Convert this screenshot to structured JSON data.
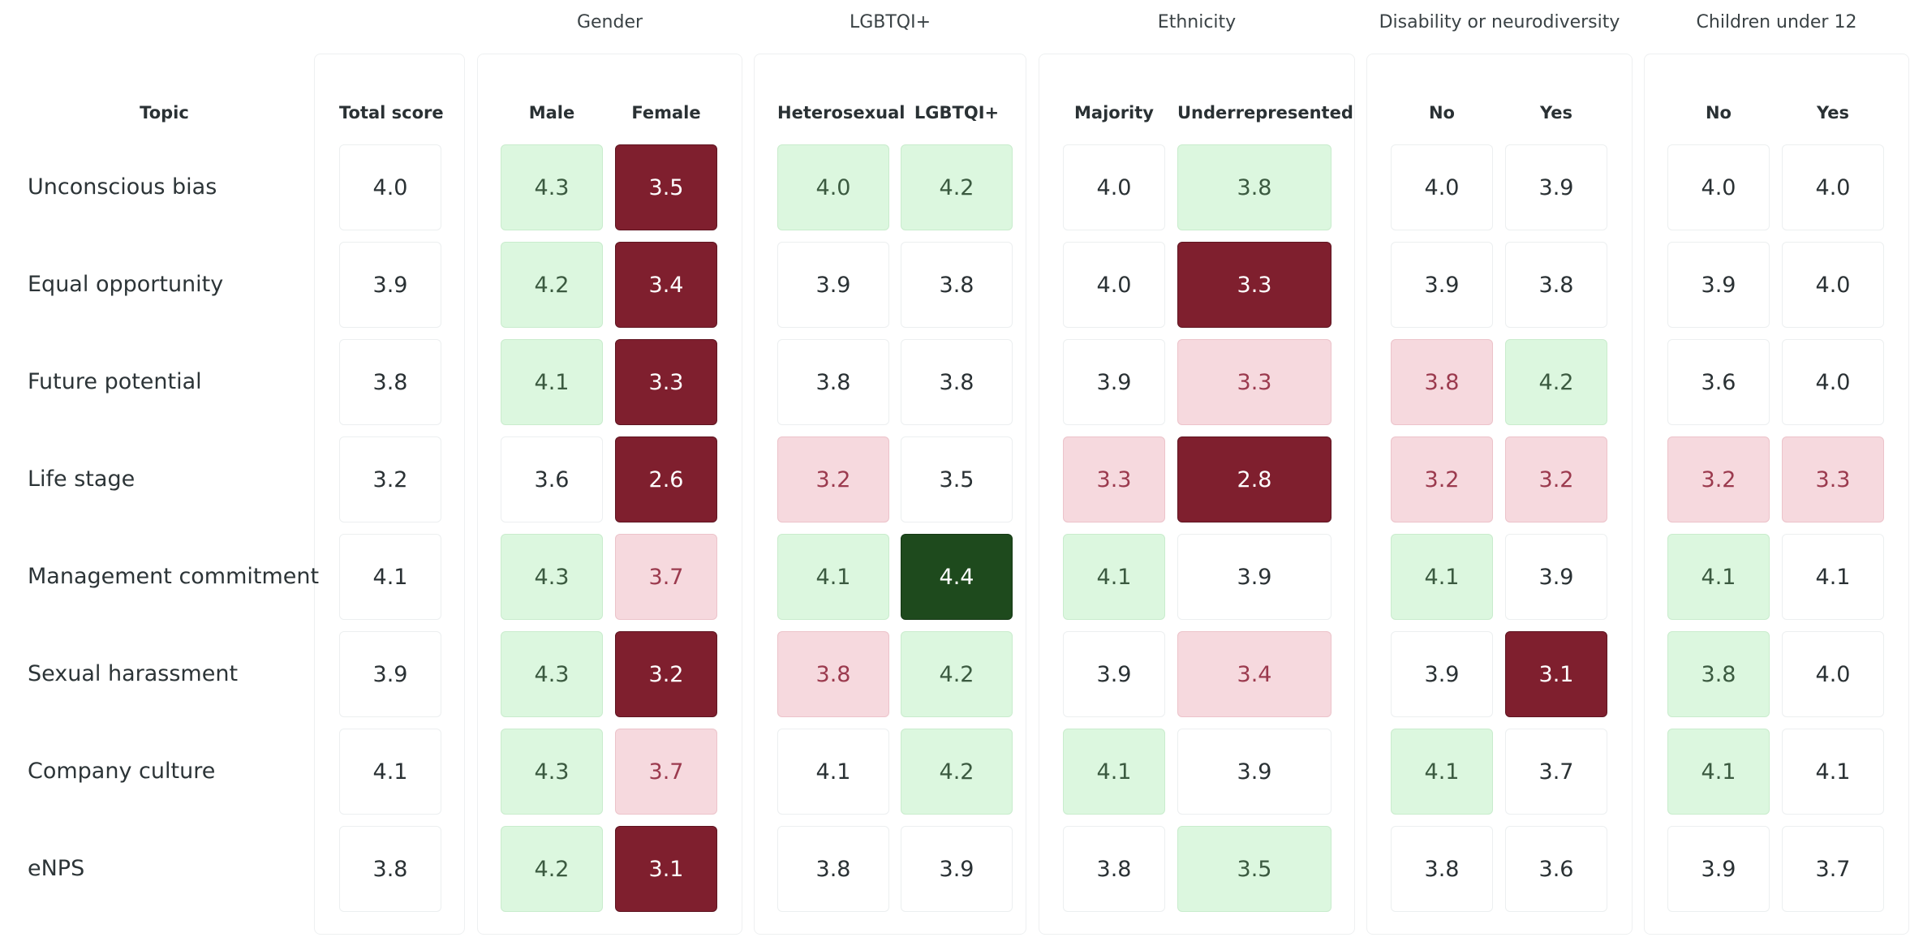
{
  "chart_data": {
    "type": "table",
    "title": "",
    "topic_header": "Topic",
    "groups": [
      {
        "title": "",
        "columns": [
          "Total score"
        ]
      },
      {
        "title": "Gender",
        "columns": [
          "Male",
          "Female"
        ]
      },
      {
        "title": "LGBTQI+",
        "columns": [
          "Heterosexual",
          "LGBTQI+"
        ]
      },
      {
        "title": "Ethnicity",
        "columns": [
          "Majority",
          "Underrepresented"
        ]
      },
      {
        "title": "Disability or neurodiversity",
        "columns": [
          "No",
          "Yes"
        ]
      },
      {
        "title": "Children under 12",
        "columns": [
          "No",
          "Yes"
        ]
      }
    ],
    "rows": [
      {
        "topic": "Unconscious bias",
        "values": [
          "4.0",
          "4.3",
          "3.5",
          "4.0",
          "4.2",
          "4.0",
          "3.8",
          "4.0",
          "3.9",
          "4.0",
          "4.0"
        ],
        "levels": [
          "neutral",
          "good",
          "worst",
          "good",
          "good",
          "neutral",
          "good",
          "neutral",
          "neutral",
          "neutral",
          "neutral"
        ]
      },
      {
        "topic": "Equal opportunity",
        "values": [
          "3.9",
          "4.2",
          "3.4",
          "3.9",
          "3.8",
          "4.0",
          "3.3",
          "3.9",
          "3.8",
          "3.9",
          "4.0"
        ],
        "levels": [
          "neutral",
          "good",
          "worst",
          "neutral",
          "neutral",
          "neutral",
          "worst",
          "neutral",
          "neutral",
          "neutral",
          "neutral"
        ]
      },
      {
        "topic": "Future potential",
        "values": [
          "3.8",
          "4.1",
          "3.3",
          "3.8",
          "3.8",
          "3.9",
          "3.3",
          "3.8",
          "4.2",
          "3.6",
          "4.0"
        ],
        "levels": [
          "neutral",
          "good",
          "worst",
          "neutral",
          "neutral",
          "neutral",
          "bad",
          "bad",
          "good",
          "neutral",
          "neutral"
        ]
      },
      {
        "topic": "Life stage",
        "values": [
          "3.2",
          "3.6",
          "2.6",
          "3.2",
          "3.5",
          "3.3",
          "2.8",
          "3.2",
          "3.2",
          "3.2",
          "3.3"
        ],
        "levels": [
          "neutral",
          "neutral",
          "worst",
          "bad",
          "neutral",
          "bad",
          "worst",
          "bad",
          "bad",
          "bad",
          "bad"
        ]
      },
      {
        "topic": "Management commitment",
        "values": [
          "4.1",
          "4.3",
          "3.7",
          "4.1",
          "4.4",
          "4.1",
          "3.9",
          "4.1",
          "3.9",
          "4.1",
          "4.1"
        ],
        "levels": [
          "neutral",
          "good",
          "bad",
          "good",
          "great",
          "good",
          "neutral",
          "good",
          "neutral",
          "good",
          "neutral"
        ]
      },
      {
        "topic": "Sexual harassment",
        "values": [
          "3.9",
          "4.3",
          "3.2",
          "3.8",
          "4.2",
          "3.9",
          "3.4",
          "3.9",
          "3.1",
          "3.8",
          "4.0"
        ],
        "levels": [
          "neutral",
          "good",
          "worst",
          "bad",
          "good",
          "neutral",
          "bad",
          "neutral",
          "worst",
          "good",
          "neutral"
        ]
      },
      {
        "topic": "Company culture",
        "values": [
          "4.1",
          "4.3",
          "3.7",
          "4.1",
          "4.2",
          "4.1",
          "3.9",
          "4.1",
          "3.7",
          "4.1",
          "4.1"
        ],
        "levels": [
          "neutral",
          "good",
          "bad",
          "neutral",
          "good",
          "good",
          "neutral",
          "good",
          "neutral",
          "good",
          "neutral"
        ]
      },
      {
        "topic": "eNPS",
        "values": [
          "3.8",
          "4.2",
          "3.1",
          "3.8",
          "3.9",
          "3.8",
          "3.5",
          "3.8",
          "3.6",
          "3.9",
          "3.7"
        ],
        "levels": [
          "neutral",
          "good",
          "worst",
          "neutral",
          "neutral",
          "neutral",
          "good",
          "neutral",
          "neutral",
          "neutral",
          "neutral"
        ]
      }
    ],
    "colors": {
      "neutral": "#ffffff",
      "good": "#dcf7df",
      "great": "#1e4a1d",
      "bad": "#f6d9de",
      "worst": "#7f1f2e"
    }
  }
}
